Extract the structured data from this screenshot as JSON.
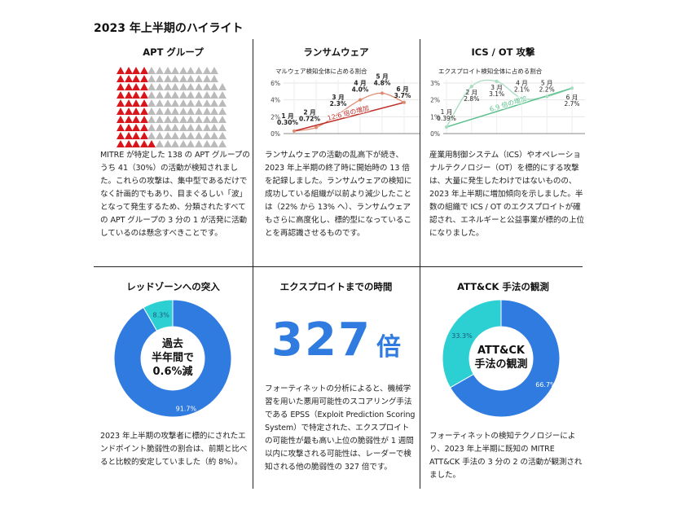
{
  "page_title": "2023 年上半期のハイライト",
  "apt": {
    "heading": "APT グループ",
    "total_groups": 138,
    "active_groups": 41,
    "text": "MITRE が特定した 138 の APT グループのうち 41（30%）の活動が検知されました。これらの攻撃は、集中型であるだけでなく計画的でもあり、目まぐるしい「波」となって発生するため、分類されたすべての APT グループの 3 分の 1 が活発に活動しているのは懸念すべきことです。",
    "colors": {
      "active": "#d8161b",
      "inactive": "#bbbbbb"
    }
  },
  "ransomware": {
    "heading": "ランサムウェア",
    "text": "ランサムウェアの活動の乱高下が続き、2023 年上半期の終了時に開始時の 13 倍を記録しました。ランサムウェアの検知に成功している組織が以前より減少したことは（22% から 13% へ）、ランサムウェアもさらに高度化し、標的型になっていることを再認識させるものです。"
  },
  "ics": {
    "heading": "ICS / OT 攻撃",
    "text": "産業用制御システム（ICS）やオペレーショナルテクノロジー（OT）を標的にする攻撃は、大量に発生したわけではないものの、2023 年上半期に増加傾向を示しました。半数の組織で ICS / OT のエクスプロイトが確認され、エネルギーと公益事業が標的の上位になりました。"
  },
  "redzone": {
    "heading": "レッドゾーンへの突入",
    "center_lines": [
      "過去",
      "半年間で",
      "0.6%減"
    ],
    "text": "2023 年上半期の攻撃者に標的にされたエンドポイント脆弱性の割合は、前期と比べると比較的安定していました（約 8%）。"
  },
  "exploit_time": {
    "heading": "エクスプロイトまでの時間",
    "number": "327",
    "unit": "倍",
    "text": "フォーティネットの分析によると、機械学習を用いた悪用可能性のスコアリング手法である EPSS（Exploit Prediction Scoring System）で特定された、エクスプロイトの可能性が最も高い上位の脆弱性が 1 週間以内に攻撃される可能性は、レーダーで検知される他の脆弱性の 327 倍です。",
    "color": "#2f7be0"
  },
  "attck": {
    "heading": "ATT&CK 手法の観測",
    "center_lines": [
      "ATT&CK",
      "手法の観測"
    ],
    "text": "フォーティネットの検知テクノロジーにより、2023 年上半期に既知の MITRE ATT&CK 手法の 3 分の 2 の活動が観測されました。"
  },
  "chart_data": [
    {
      "type": "line",
      "title": "マルウェア検知全体に占める割合",
      "categories": [
        "1 月",
        "2 月",
        "3 月",
        "4 月",
        "5 月",
        "6 月"
      ],
      "values": [
        0.3,
        0.72,
        2.3,
        4.0,
        4.8,
        3.7
      ],
      "value_labels": [
        "0.30%",
        "0.72%",
        "2.3%",
        "4.0%",
        "4.8%",
        "3.7%"
      ],
      "yticks": [
        "0%",
        "2%",
        "4%",
        "6%"
      ],
      "ylim": [
        0,
        6
      ],
      "trend_label": "12.6 倍の増加",
      "colors": {
        "line": "#e08a70",
        "trend": "#c0302a"
      }
    },
    {
      "type": "line",
      "title": "エクスプロイト検知全体に占める割合",
      "categories": [
        "1 月",
        "2 月",
        "3 月",
        "4 月",
        "5 月",
        "6 月"
      ],
      "values": [
        0.39,
        2.8,
        3.1,
        2.1,
        2.2,
        2.7
      ],
      "value_labels": [
        "0.39%",
        "2.8%",
        "3.1%",
        "2.1%",
        "2.2%",
        "2.7%"
      ],
      "yticks": [
        "0%",
        "1%",
        "2%",
        "3%"
      ],
      "ylim": [
        0,
        3
      ],
      "trend_label": "6.9 倍の増加",
      "colors": {
        "line": "#a8dcc0",
        "trend": "#5cc08e"
      }
    },
    {
      "type": "pie",
      "labels": [
        "91.7%",
        "8.3%"
      ],
      "values": [
        91.7,
        8.3
      ],
      "colors": [
        "#2f7be0",
        "#2ccfd2"
      ]
    },
    {
      "type": "pie",
      "labels": [
        "66.7%",
        "33.3%"
      ],
      "values": [
        66.7,
        33.3
      ],
      "colors": [
        "#2f7be0",
        "#2ccfd2"
      ]
    }
  ]
}
